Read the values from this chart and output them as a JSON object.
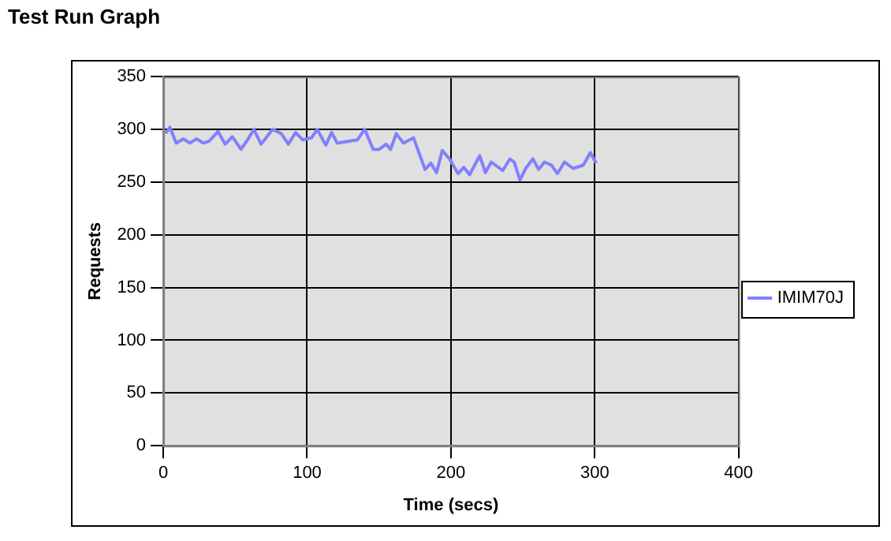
{
  "chart_data": {
    "type": "line",
    "title": "Test Run Graph",
    "xlabel": "Time (secs)",
    "ylabel": "Requests",
    "xlim": [
      0,
      400
    ],
    "xticks": [
      0,
      100,
      200,
      300,
      400
    ],
    "ylim": [
      0,
      350
    ],
    "yticks": [
      0,
      50,
      100,
      150,
      200,
      250,
      300,
      350
    ],
    "grid": true,
    "legend": "right",
    "series": [
      {
        "name": "IMIM70J",
        "color": "#8080ff",
        "x": [
          1.5,
          4.6,
          9,
          14,
          18.5,
          23,
          28,
          32,
          38,
          43,
          48,
          54,
          59,
          63,
          68,
          76,
          82,
          87,
          92,
          97,
          103,
          107,
          113,
          117,
          121,
          130,
          135,
          140,
          146,
          150,
          155,
          158,
          162,
          167,
          174,
          182,
          186,
          190,
          194,
          199,
          205,
          209,
          213,
          220,
          224,
          228,
          236,
          241,
          244,
          248,
          252,
          257,
          261,
          265,
          270,
          274,
          279,
          285,
          292,
          297,
          301
        ],
        "values": [
          296,
          302,
          287,
          291,
          287,
          291,
          287,
          289,
          298,
          286,
          293,
          281,
          291,
          300,
          286,
          300,
          296,
          286,
          297,
          290,
          292,
          300,
          285,
          297,
          287,
          289,
          290,
          300,
          281,
          281,
          286,
          281,
          296,
          287,
          292,
          262,
          268,
          259,
          280,
          272,
          258,
          264,
          257,
          275,
          259,
          269,
          261,
          272,
          269,
          252,
          263,
          272,
          262,
          269,
          266,
          258,
          269,
          263,
          266,
          278,
          268
        ]
      }
    ]
  }
}
